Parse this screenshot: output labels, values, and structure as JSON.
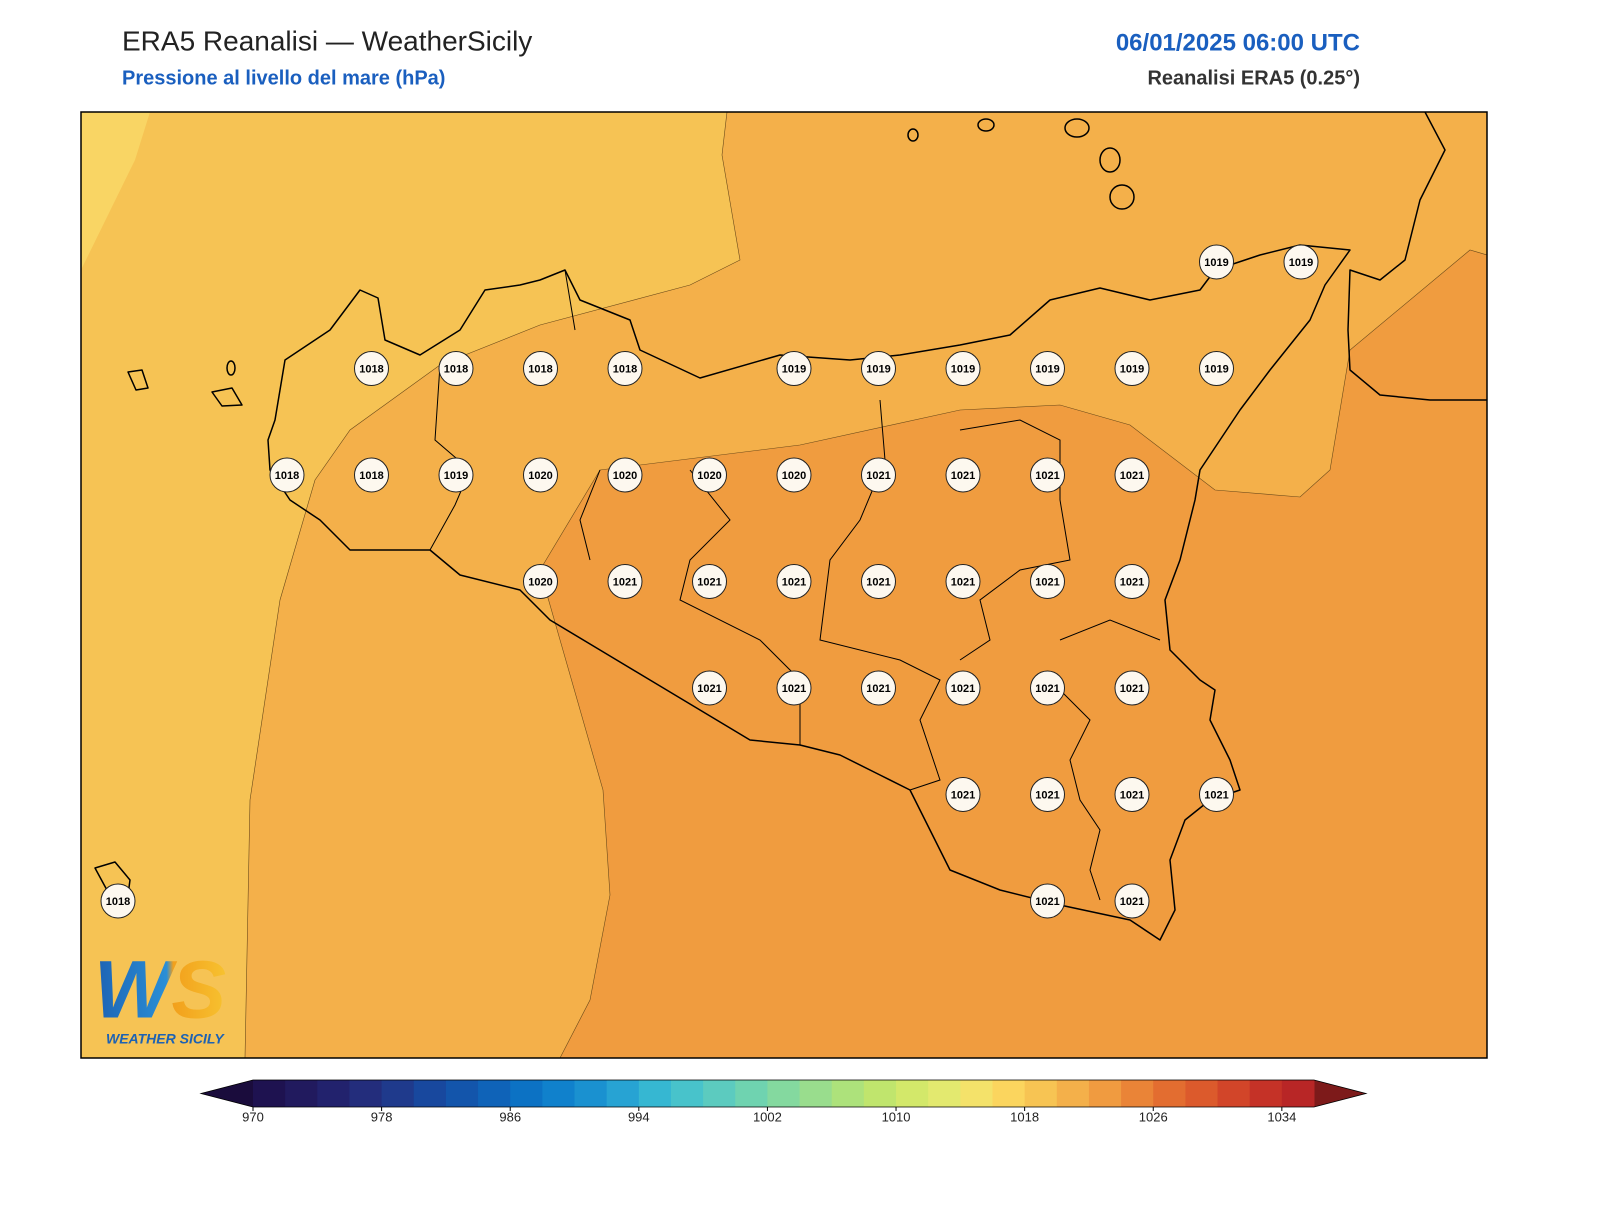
{
  "header": {
    "title": "ERA5 Reanalisi — WeatherSicily",
    "subtitle": "Pressione al livello del mare (hPa)",
    "datetime": "06/01/2025 06:00 UTC",
    "source": "Reanalisi ERA5 (0.25°)"
  },
  "logo": {
    "mark": "WS",
    "text": "WEATHER SICILY"
  },
  "pressure_grid": {
    "rows": [
      [
        null,
        null,
        null,
        null,
        null,
        null,
        null,
        null,
        null,
        null,
        null,
        null,
        null,
        1019,
        1019
      ],
      [
        null,
        null,
        null,
        1018,
        1018,
        1018,
        1018,
        null,
        1019,
        1019,
        1019,
        1019,
        1019,
        1019,
        null
      ],
      [
        null,
        null,
        1018,
        1018,
        1019,
        1020,
        1020,
        1020,
        1020,
        1021,
        1021,
        1021,
        1021,
        null,
        null
      ],
      [
        null,
        null,
        null,
        null,
        null,
        1020,
        1021,
        1021,
        1021,
        1021,
        1021,
        1021,
        1021,
        null,
        null
      ],
      [
        null,
        null,
        null,
        null,
        null,
        null,
        null,
        1021,
        1021,
        1021,
        1021,
        1021,
        1021,
        null,
        null
      ],
      [
        null,
        null,
        null,
        null,
        null,
        null,
        null,
        null,
        null,
        null,
        1021,
        1021,
        1021,
        1021,
        null
      ],
      [
        1018,
        null,
        null,
        null,
        null,
        null,
        null,
        null,
        null,
        null,
        null,
        1021,
        1021,
        null,
        null
      ]
    ]
  },
  "colorbar": {
    "lim": [
      970,
      1036
    ],
    "ticks": [
      970,
      978,
      986,
      994,
      1002,
      1010,
      1018,
      1026,
      1034
    ],
    "colors": [
      "#1e1250",
      "#211a5e",
      "#22226d",
      "#232d7c",
      "#1f3a8c",
      "#18489e",
      "#1355ab",
      "#0f63b8",
      "#0c72c4",
      "#1081cc",
      "#1a91d0",
      "#27a3d3",
      "#36b7d2",
      "#48c3cb",
      "#5ccbbf",
      "#6fd3b0",
      "#84d99f",
      "#99dd8d",
      "#ade27b",
      "#c0e56d",
      "#d3e86a",
      "#e3e96f",
      "#f4e26a",
      "#fbd55e",
      "#f7c453",
      "#f4b04a",
      "#f09b40",
      "#ea8437",
      "#e36d30",
      "#dc5a2c",
      "#d24529",
      "#c53227",
      "#b82626"
    ],
    "under_color": "#1a0c3c",
    "over_color": "#7d1a1a"
  }
}
